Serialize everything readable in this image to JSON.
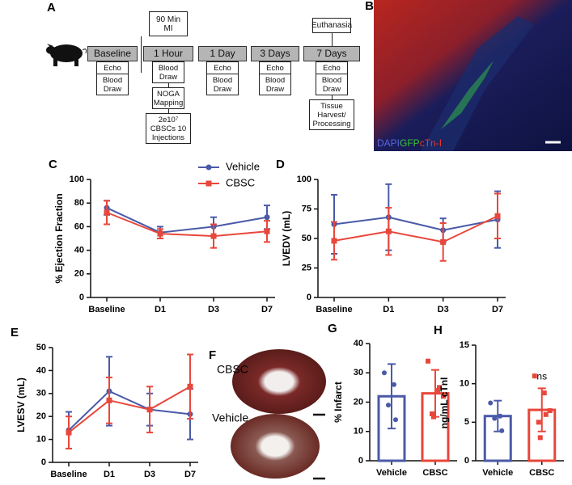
{
  "timeline": {
    "panel": "A",
    "stages": [
      {
        "label": "Baseline",
        "steps": [
          "Echo",
          "Blood Draw"
        ]
      },
      {
        "label": "1 Hour",
        "above": "90 Min MI",
        "steps": [
          "Blood Draw",
          "NOGA Mapping",
          "2e10⁷ CBSCs 10 Injections"
        ]
      },
      {
        "label": "1 Day",
        "steps": [
          "Echo",
          "Blood Draw"
        ]
      },
      {
        "label": "3 Days",
        "steps": [
          "Echo",
          "Blood Draw"
        ]
      },
      {
        "label": "7 Days",
        "above": "Euthanasia",
        "steps": [
          "Echo",
          "Blood Draw",
          "Tissue Harvest/ Processing"
        ]
      }
    ]
  },
  "micrograph": {
    "panel": "B",
    "stains": [
      {
        "text": "DAPI",
        "color": "#5a63d8"
      },
      {
        "text": "GFP",
        "color": "#39c23a"
      },
      {
        "text": "cTn-I",
        "color": "#e8342a"
      }
    ]
  },
  "hearts": {
    "panel": "F",
    "labels": [
      "CBSC",
      "Vehicle"
    ]
  },
  "chart_data": [
    {
      "type": "line",
      "panel": "C",
      "ylabel": "% Ejection Fraction",
      "legend": "top-right",
      "categories": [
        "Baseline",
        "D1",
        "D3",
        "D7"
      ],
      "ylim": [
        0,
        100
      ],
      "yticks": [
        0,
        20,
        40,
        60,
        80,
        100
      ],
      "series": [
        {
          "name": "Vehicle",
          "color": "#4a5aa8",
          "marker": "circle",
          "values": [
            76,
            55,
            60,
            68
          ],
          "errors": [
            6,
            5,
            8,
            10
          ]
        },
        {
          "name": "CBSC",
          "color": "#e8473b",
          "marker": "square",
          "values": [
            72,
            54,
            52,
            56
          ],
          "errors": [
            10,
            4,
            10,
            9
          ]
        }
      ]
    },
    {
      "type": "line",
      "panel": "D",
      "ylabel": "LVEDV (mL)",
      "categories": [
        "Baseline",
        "D1",
        "D3",
        "D7"
      ],
      "ylim": [
        0,
        100
      ],
      "yticks": [
        0,
        25,
        50,
        75,
        100
      ],
      "series": [
        {
          "color": "#4a5aa8",
          "marker": "circle",
          "values": [
            62,
            68,
            57,
            66
          ],
          "errors": [
            25,
            28,
            10,
            24
          ]
        },
        {
          "color": "#e8473b",
          "marker": "square",
          "values": [
            48,
            56,
            47,
            69
          ],
          "errors": [
            16,
            20,
            16,
            19
          ]
        }
      ]
    },
    {
      "type": "line",
      "panel": "E",
      "ylabel": "LVESV (mL)",
      "categories": [
        "Baseline",
        "D1",
        "D3",
        "D7"
      ],
      "ylim": [
        0,
        50
      ],
      "yticks": [
        0,
        10,
        20,
        30,
        40,
        50
      ],
      "series": [
        {
          "color": "#4a5aa8",
          "marker": "circle",
          "values": [
            14,
            31,
            23,
            21
          ],
          "errors": [
            8,
            15,
            7,
            11
          ]
        },
        {
          "color": "#e8473b",
          "marker": "square",
          "values": [
            13,
            27,
            23,
            33
          ],
          "errors": [
            7,
            10,
            10,
            14
          ]
        }
      ]
    },
    {
      "type": "bar",
      "panel": "G",
      "ylabel": "% Infarct",
      "categories": [
        "Vehicle",
        "CBSC"
      ],
      "colors": [
        "#4a5aa8",
        "#e8473b"
      ],
      "markers": [
        "circle",
        "square"
      ],
      "values": [
        22,
        23
      ],
      "errors": [
        11,
        8
      ],
      "points": [
        [
          30,
          26,
          14,
          19
        ],
        [
          34,
          24,
          25,
          16,
          15,
          22
        ]
      ],
      "ylim": [
        0,
        40
      ],
      "yticks": [
        0,
        10,
        20,
        30,
        40
      ]
    },
    {
      "type": "bar",
      "panel": "H",
      "ylabel": "ng/mL cTnI",
      "annotation": "ns",
      "categories": [
        "Vehicle",
        "CBSC"
      ],
      "colors": [
        "#4a5aa8",
        "#e8473b"
      ],
      "markers": [
        "circle",
        "square"
      ],
      "values": [
        5.8,
        6.6
      ],
      "errors": [
        2,
        2.8
      ],
      "points": [
        [
          7.5,
          5.8,
          3.9,
          5.5
        ],
        [
          11,
          8.8,
          6,
          5,
          3,
          6.5
        ]
      ],
      "ylim": [
        0,
        15
      ],
      "yticks": [
        0,
        5,
        10,
        15
      ]
    }
  ]
}
